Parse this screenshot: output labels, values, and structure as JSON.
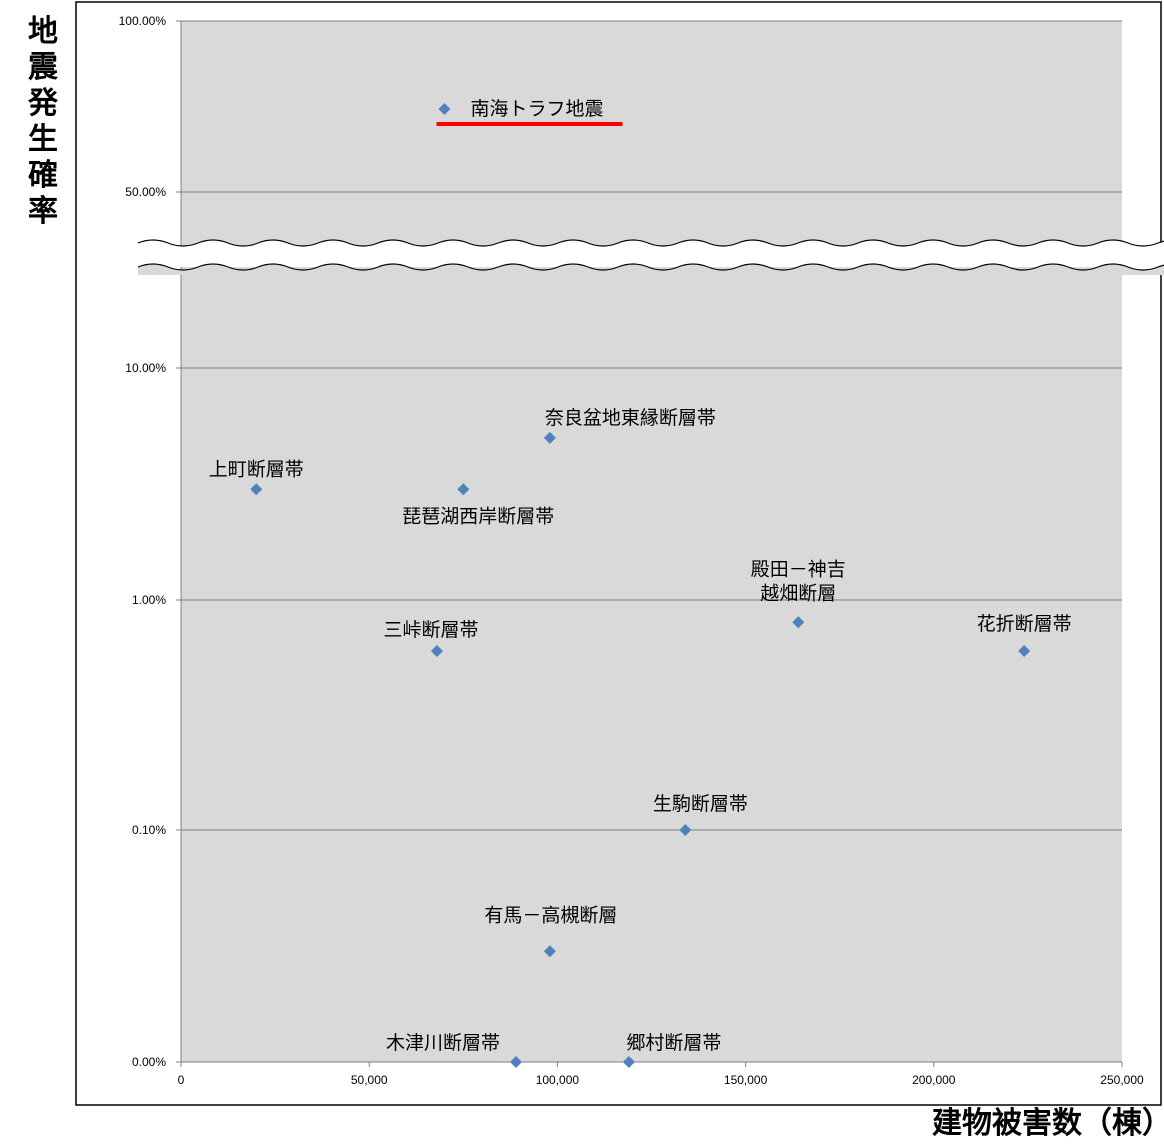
{
  "chart_data": {
    "type": "scatter",
    "ylabel": "地震発生確率",
    "xlabel": "建物被害数（棟）",
    "xlim": [
      0,
      250000
    ],
    "x_ticks": [
      0,
      50000,
      100000,
      150000,
      200000,
      250000
    ],
    "x_tick_labels": [
      "0",
      "50,000",
      "100,000",
      "150,000",
      "200,000",
      "250,000"
    ],
    "y_ticks": [
      0.0,
      0.1,
      1.0,
      10.0,
      50.0,
      100.0
    ],
    "y_tick_labels": [
      "0.00%",
      "0.10%",
      "1.00%",
      "10.00%",
      "50.00%",
      "100.00%"
    ],
    "y_scale": "log, with axis break between 10.00% and 50.00%",
    "grid": true,
    "legend": "none",
    "marker_color": "#4f81bd",
    "highlight_color": "#ff0000",
    "plot_background": "#d9d9d9",
    "points": [
      {
        "label": "南海トラフ地震",
        "x": 70000,
        "y": 70.0,
        "highlight": true
      },
      {
        "label": "奈良盆地東縁断層帯",
        "x": 98000,
        "y": 5.0
      },
      {
        "label": "上町断層帯",
        "x": 20000,
        "y": 3.0
      },
      {
        "label": "琵琶湖西岸断層帯",
        "x": 75000,
        "y": 3.0
      },
      {
        "label": "殿田－神吉\n越畑断層",
        "x": 164000,
        "y": 0.8
      },
      {
        "label": "花折断層帯",
        "x": 224000,
        "y": 0.6
      },
      {
        "label": "三峠断層帯",
        "x": 68000,
        "y": 0.6
      },
      {
        "label": "生駒断層帯",
        "x": 134000,
        "y": 0.1
      },
      {
        "label": "有馬－高槻断層",
        "x": 98000,
        "y": 0.03
      },
      {
        "label": "木津川断層帯",
        "x": 89000,
        "y": 0.01
      },
      {
        "label": "郷村断層帯",
        "x": 119000,
        "y": 0.01
      }
    ]
  }
}
